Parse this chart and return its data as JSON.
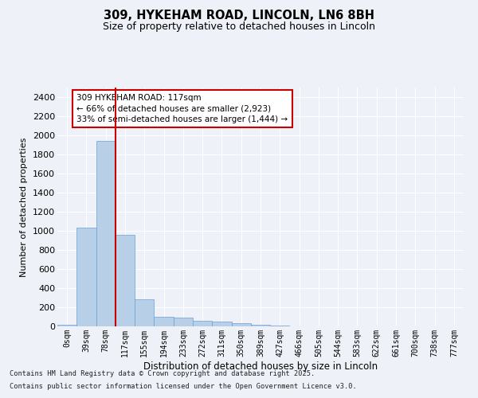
{
  "title1": "309, HYKEHAM ROAD, LINCOLN, LN6 8BH",
  "title2": "Size of property relative to detached houses in Lincoln",
  "xlabel": "Distribution of detached houses by size in Lincoln",
  "ylabel": "Number of detached properties",
  "categories": [
    "0sqm",
    "39sqm",
    "78sqm",
    "117sqm",
    "155sqm",
    "194sqm",
    "233sqm",
    "272sqm",
    "311sqm",
    "350sqm",
    "389sqm",
    "427sqm",
    "466sqm",
    "505sqm",
    "544sqm",
    "583sqm",
    "622sqm",
    "661sqm",
    "700sqm",
    "738sqm",
    "777sqm"
  ],
  "values": [
    20,
    1030,
    1940,
    960,
    280,
    100,
    90,
    60,
    50,
    30,
    20,
    8,
    4,
    2,
    1,
    1,
    0,
    0,
    0,
    0,
    0
  ],
  "bar_color": "#b8cfe8",
  "bar_edge_color": "#6b9fd4",
  "vline_color": "#cc0000",
  "annotation_text": "309 HYKEHAM ROAD: 117sqm\n← 66% of detached houses are smaller (2,923)\n33% of semi-detached houses are larger (1,444) →",
  "annotation_box_color": "white",
  "annotation_box_edge": "#cc0000",
  "ylim": [
    0,
    2500
  ],
  "yticks": [
    0,
    200,
    400,
    600,
    800,
    1000,
    1200,
    1400,
    1600,
    1800,
    2000,
    2200,
    2400
  ],
  "footer1": "Contains HM Land Registry data © Crown copyright and database right 2025.",
  "footer2": "Contains public sector information licensed under the Open Government Licence v3.0.",
  "bg_color": "#eef2f8",
  "grid_color": "white",
  "vline_bar_index": 3
}
